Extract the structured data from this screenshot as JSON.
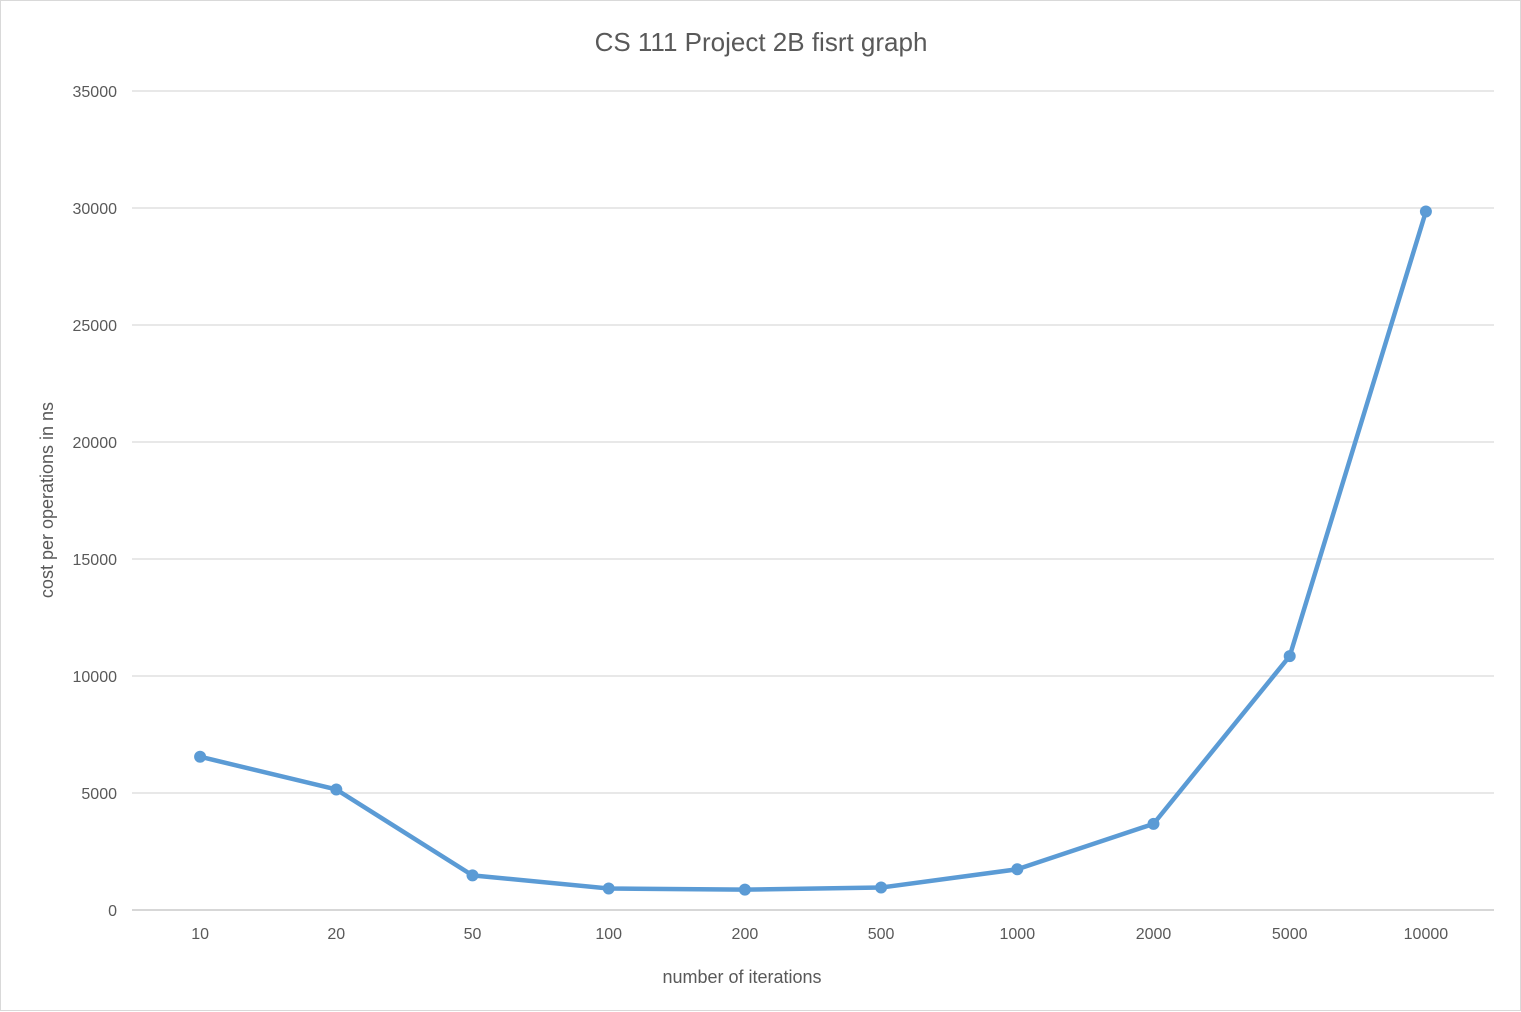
{
  "chart_data": {
    "type": "line",
    "title": "CS 111 Project 2B fisrt graph",
    "xlabel": "number of iterations",
    "ylabel": "cost per operations in ns",
    "categories": [
      "10",
      "20",
      "50",
      "100",
      "200",
      "500",
      "1000",
      "2000",
      "5000",
      "10000"
    ],
    "series": [
      {
        "values": [
          6550,
          5150,
          1480,
          920,
          870,
          960,
          1740,
          3680,
          10850,
          29850
        ],
        "color": "#5b9bd5"
      }
    ],
    "ylim": [
      0,
      35000
    ],
    "yticks": [
      "0",
      "5000",
      "10000",
      "15000",
      "20000",
      "25000",
      "30000",
      "35000"
    ],
    "grid": true,
    "legend": "none"
  }
}
